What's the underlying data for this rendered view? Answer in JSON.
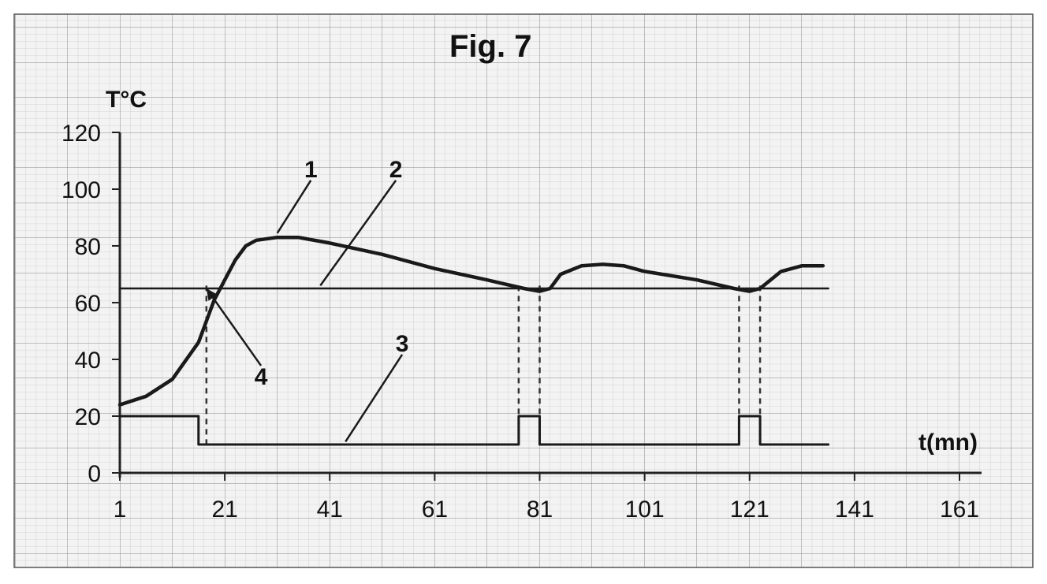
{
  "chart_data": {
    "type": "line",
    "title": "Fig. 7",
    "ylabel": "T°C",
    "xlabel": "t(mn)",
    "xlim": [
      1,
      161
    ],
    "ylim": [
      0,
      120
    ],
    "x_ticks": [
      "1",
      "21",
      "41",
      "61",
      "81",
      "101",
      "121",
      "141",
      "161"
    ],
    "y_ticks": [
      "0",
      "20",
      "40",
      "60",
      "80",
      "100",
      "120"
    ],
    "grid": true,
    "legend": "none",
    "series": [
      {
        "name": "1",
        "x": [
          1,
          6,
          11,
          16,
          19,
          21,
          23,
          25,
          27,
          31,
          35,
          41,
          51,
          61,
          71,
          78,
          81,
          83,
          85,
          89,
          93,
          97,
          101,
          111,
          118,
          121,
          123,
          127,
          131,
          135
        ],
        "y": [
          24,
          27,
          33,
          46,
          61,
          68,
          75,
          80,
          82,
          83,
          83,
          81,
          77,
          72,
          68,
          65,
          64,
          65,
          70,
          73,
          73.5,
          73,
          71,
          68,
          65,
          64,
          65,
          71,
          73,
          73
        ]
      },
      {
        "name": "2",
        "x": [
          1,
          136
        ],
        "y": [
          65,
          65
        ]
      },
      {
        "name": "3",
        "x": [
          1,
          16,
          16,
          77,
          77,
          81,
          81,
          119,
          119,
          123,
          123,
          136
        ],
        "y": [
          20,
          20,
          10,
          10,
          20,
          20,
          10,
          10,
          20,
          20,
          10,
          10
        ]
      }
    ],
    "annotations": [
      {
        "text": "1",
        "x": 37.4,
        "y": 103.1,
        "target_x": 31,
        "target_y": 84.5
      },
      {
        "text": "2",
        "x": 53.6,
        "y": 103.1,
        "target_x": 39.2,
        "target_y": 66
      },
      {
        "text": "3",
        "x": 54.8,
        "y": 41.7,
        "target_x": 44,
        "target_y": 11
      },
      {
        "text": "4",
        "x": 27.9,
        "y": 37.8,
        "target_x": 17.5,
        "target_y": 65
      }
    ],
    "vertical_markers_x": [
      17.5,
      77,
      81,
      119,
      123
    ]
  }
}
